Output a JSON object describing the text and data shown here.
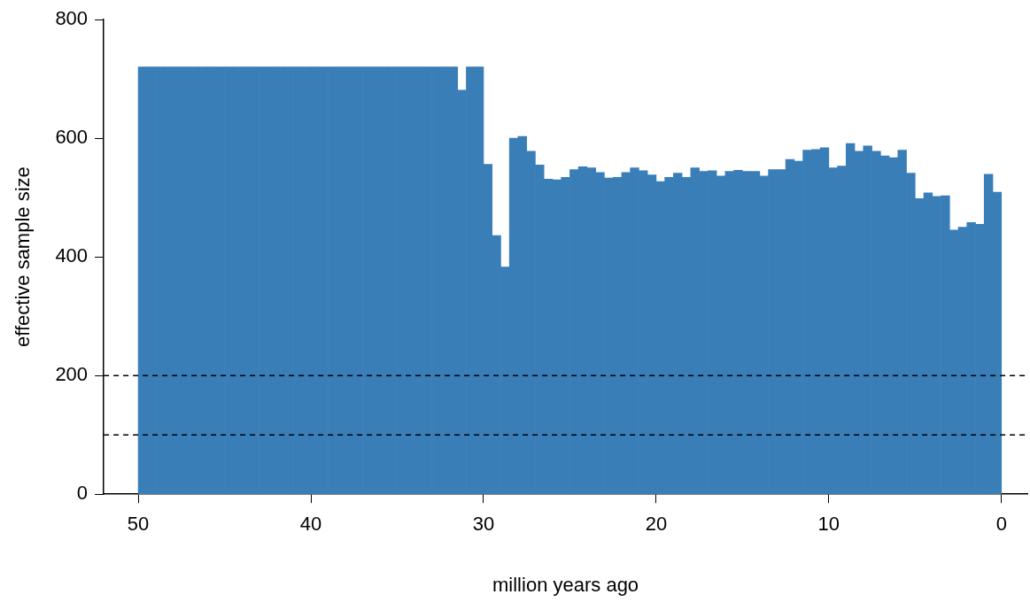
{
  "chart_data": {
    "type": "histogram",
    "xlabel": "million years ago",
    "ylabel": "effective sample size",
    "bins": [
      50,
      49.5,
      49,
      48.5,
      48,
      47.5,
      47,
      46.5,
      46,
      45.5,
      45,
      44.5,
      44,
      43.5,
      43,
      42.5,
      42,
      41.5,
      41,
      40.5,
      40,
      39.5,
      39,
      38.5,
      38,
      37.5,
      37,
      36.5,
      36,
      35.5,
      35,
      34.5,
      34,
      33.5,
      33,
      32.5,
      32,
      31.5,
      31,
      30.5,
      30,
      29.5,
      29,
      28.5,
      28,
      27.5,
      27,
      26.5,
      26,
      25.5,
      25,
      24.5,
      24,
      23.5,
      23,
      22.5,
      22,
      21.5,
      21,
      20.5,
      20,
      19.5,
      19,
      18.5,
      18,
      17.5,
      17,
      16.5,
      16,
      15.5,
      15,
      14.5,
      14,
      13.5,
      13,
      12.5,
      12,
      11.5,
      11,
      10.5,
      10,
      9.5,
      9,
      8.5,
      8,
      7.5,
      7,
      6.5,
      6,
      5.5,
      5,
      4.5,
      4,
      3.5,
      3,
      2.5,
      2,
      1.5,
      1,
      0.5,
      0
    ],
    "values": [
      720,
      720,
      720,
      720,
      720,
      720,
      720,
      720,
      720,
      720,
      720,
      720,
      720,
      720,
      720,
      720,
      720,
      720,
      720,
      720,
      720,
      720,
      720,
      720,
      720,
      720,
      720,
      720,
      720,
      720,
      720,
      720,
      720,
      720,
      720,
      720,
      720,
      681,
      720,
      720,
      556,
      436,
      383,
      600,
      603,
      578,
      555,
      531,
      530,
      534,
      547,
      552,
      550,
      542,
      533,
      534,
      542,
      550,
      545,
      538,
      527,
      534,
      541,
      534,
      550,
      544,
      545,
      536,
      544,
      546,
      544,
      544,
      536,
      547,
      547,
      564,
      561,
      580,
      581,
      584,
      550,
      553,
      591,
      578,
      587,
      578,
      570,
      567,
      580,
      541,
      498,
      508,
      502,
      503,
      445,
      450,
      458,
      455,
      539,
      509
    ],
    "color": "#3a7eb8",
    "xlim": [
      52,
      -1.5
    ],
    "xticks": [
      50,
      40,
      30,
      20,
      10,
      0
    ],
    "ylim": [
      0,
      800
    ],
    "yticks": [
      0,
      200,
      400,
      600,
      800
    ],
    "ref_lines": [
      {
        "axis": "y",
        "value": 200,
        "line_style": "dashed",
        "color": "#000000"
      },
      {
        "axis": "y",
        "value": 100,
        "line_style": "dashed",
        "color": "#000000"
      }
    ],
    "grid": false,
    "legend": false
  }
}
